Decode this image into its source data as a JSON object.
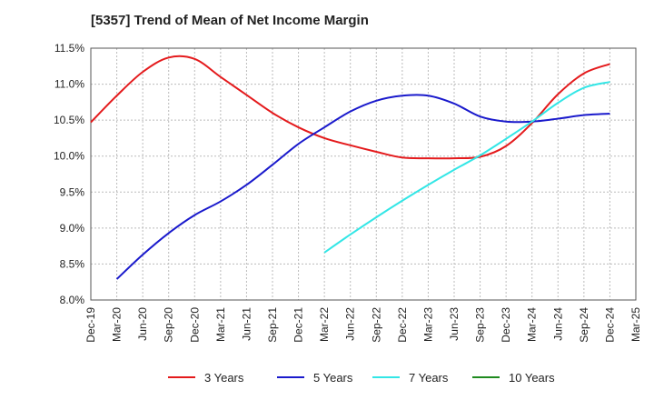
{
  "chart_data": {
    "type": "line",
    "title": "[5357]  Trend of Mean of Net Income Margin",
    "xlabel": "",
    "ylabel": "",
    "x": [
      "Dec-19",
      "Mar-20",
      "Jun-20",
      "Sep-20",
      "Dec-20",
      "Mar-21",
      "Jun-21",
      "Sep-21",
      "Dec-21",
      "Mar-22",
      "Jun-22",
      "Sep-22",
      "Dec-22",
      "Mar-23",
      "Jun-23",
      "Sep-23",
      "Dec-23",
      "Mar-24",
      "Jun-24",
      "Sep-24",
      "Dec-24",
      "Mar-25"
    ],
    "y_ticks": [
      "8.0%",
      "8.5%",
      "9.0%",
      "9.5%",
      "10.0%",
      "10.5%",
      "11.0%",
      "11.5%"
    ],
    "ylim": [
      8.0,
      11.5
    ],
    "grid": true,
    "legend_position": "bottom",
    "series": [
      {
        "name": "3 Years",
        "color": "#e41a1c",
        "values": [
          10.47,
          10.84,
          11.17,
          11.37,
          11.35,
          11.1,
          10.85,
          10.6,
          10.4,
          10.25,
          10.15,
          10.06,
          9.98,
          9.97,
          9.97,
          9.99,
          10.14,
          10.46,
          10.86,
          11.15,
          11.28,
          null
        ]
      },
      {
        "name": "5 Years",
        "color": "#1a1acc",
        "values": [
          null,
          8.29,
          8.63,
          8.93,
          9.18,
          9.37,
          9.6,
          9.88,
          10.17,
          10.4,
          10.62,
          10.77,
          10.84,
          10.84,
          10.73,
          10.55,
          10.48,
          10.48,
          10.52,
          10.57,
          10.59,
          null
        ]
      },
      {
        "name": "7 Years",
        "color": "#33e6e6",
        "values": [
          null,
          null,
          null,
          null,
          null,
          null,
          null,
          null,
          null,
          8.66,
          8.91,
          9.15,
          9.38,
          9.6,
          9.81,
          10.01,
          10.24,
          10.48,
          10.74,
          10.95,
          11.03,
          null
        ]
      },
      {
        "name": "10 Years",
        "color": "#1f8a1f",
        "values": [
          null,
          null,
          null,
          null,
          null,
          null,
          null,
          null,
          null,
          null,
          null,
          null,
          null,
          null,
          null,
          null,
          null,
          null,
          null,
          null,
          null,
          null
        ]
      }
    ]
  }
}
